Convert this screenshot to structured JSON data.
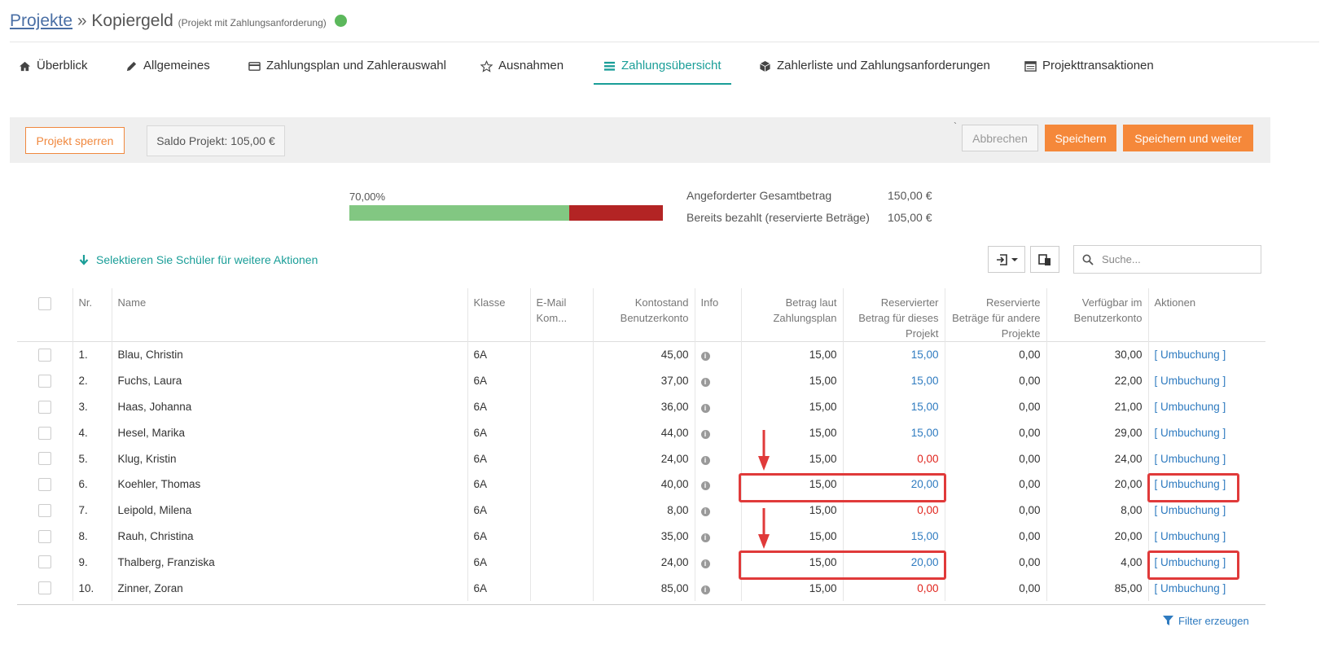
{
  "header": {
    "breadcrumb_link": "Projekte",
    "separator": "»",
    "project_name": "Kopiergeld",
    "subtitle": "(Projekt mit Zahlungsanforderung)",
    "status_color": "#5cb85c"
  },
  "tabs": [
    {
      "label": "Überblick",
      "icon": "home-icon"
    },
    {
      "label": "Allgemeines",
      "icon": "pencil-icon"
    },
    {
      "label": "Zahlungsplan und Zahlerauswahl",
      "icon": "credit-card-icon"
    },
    {
      "label": "Ausnahmen",
      "icon": "star-icon"
    },
    {
      "label": "Zahlungsübersicht",
      "icon": "list-icon",
      "active": true
    },
    {
      "label": "Zahlerliste und Zahlungsanforderungen",
      "icon": "cube-icon"
    },
    {
      "label": "Projekttransaktionen",
      "icon": "table-icon"
    }
  ],
  "toolbar": {
    "lock_label": "Projekt sperren",
    "saldo_label": "Saldo Projekt: 105,00 €",
    "tick": "`",
    "cancel_label": "Abbrechen",
    "save_label": "Speichern",
    "save_next_label": "Speichern und weiter"
  },
  "progress": {
    "percent_label": "70,00%",
    "fraction": 0.7,
    "paid_color": "#82c782",
    "remaining_color": "#b32424",
    "requested_label": "Angeforderter Gesamtbetrag",
    "requested_value": "150,00 €",
    "paid_label": "Bereits bezahlt (reservierte Beträge)",
    "paid_value": "105,00 €"
  },
  "select_hint": "Selektieren Sie Schüler für weitere Aktionen",
  "search": {
    "placeholder": "Suche..."
  },
  "table": {
    "headers": {
      "nr": "Nr.",
      "name": "Name",
      "klasse": "Klasse",
      "email": "E-Mail Kom...",
      "konto": "Kontostand Benutzerkonto",
      "info": "Info",
      "betrag": "Betrag laut Zahlungsplan",
      "reserviert": "Reservierter Betrag für dieses Projekt",
      "andere": "Reservierte Beträge für andere Projekte",
      "verfuegbar": "Verfügbar im Benutzerkonto",
      "aktionen": "Aktionen"
    },
    "rows": [
      {
        "nr": "1.",
        "name": "Blau, Christin",
        "klasse": "6A",
        "konto": "45,00",
        "betrag": "15,00",
        "reserviert": "15,00",
        "andere": "0,00",
        "verfuegbar": "30,00",
        "action": "[ Umbuchung ]",
        "status": "ok"
      },
      {
        "nr": "2.",
        "name": "Fuchs, Laura",
        "klasse": "6A",
        "konto": "37,00",
        "betrag": "15,00",
        "reserviert": "15,00",
        "andere": "0,00",
        "verfuegbar": "22,00",
        "action": "[ Umbuchung ]",
        "status": "ok"
      },
      {
        "nr": "3.",
        "name": "Haas, Johanna",
        "klasse": "6A",
        "konto": "36,00",
        "betrag": "15,00",
        "reserviert": "15,00",
        "andere": "0,00",
        "verfuegbar": "21,00",
        "action": "[ Umbuchung ]",
        "status": "ok"
      },
      {
        "nr": "4.",
        "name": "Hesel, Marika",
        "klasse": "6A",
        "konto": "44,00",
        "betrag": "15,00",
        "reserviert": "15,00",
        "andere": "0,00",
        "verfuegbar": "29,00",
        "action": "[ Umbuchung ]",
        "status": "ok"
      },
      {
        "nr": "5.",
        "name": "Klug, Kristin",
        "klasse": "6A",
        "konto": "24,00",
        "betrag": "15,00",
        "reserviert": "0,00",
        "andere": "0,00",
        "verfuegbar": "24,00",
        "action": "[ Umbuchung ]",
        "status": "missing"
      },
      {
        "nr": "6.",
        "name": "Koehler, Thomas",
        "klasse": "6A",
        "konto": "40,00",
        "betrag": "15,00",
        "reserviert": "20,00",
        "andere": "0,00",
        "verfuegbar": "20,00",
        "action": "[ Umbuchung ]",
        "status": "ok"
      },
      {
        "nr": "7.",
        "name": "Leipold, Milena",
        "klasse": "6A",
        "konto": "8,00",
        "betrag": "15,00",
        "reserviert": "0,00",
        "andere": "0,00",
        "verfuegbar": "8,00",
        "action": "[ Umbuchung ]",
        "status": "missing"
      },
      {
        "nr": "8.",
        "name": "Rauh, Christina",
        "klasse": "6A",
        "konto": "35,00",
        "betrag": "15,00",
        "reserviert": "15,00",
        "andere": "0,00",
        "verfuegbar": "20,00",
        "action": "[ Umbuchung ]",
        "status": "ok"
      },
      {
        "nr": "9.",
        "name": "Thalberg, Franziska",
        "klasse": "6A",
        "konto": "24,00",
        "betrag": "15,00",
        "reserviert": "20,00",
        "andere": "0,00",
        "verfuegbar": "4,00",
        "action": "[ Umbuchung ]",
        "status": "ok"
      },
      {
        "nr": "10.",
        "name": "Zinner, Zoran",
        "klasse": "6A",
        "konto": "85,00",
        "betrag": "15,00",
        "reserviert": "0,00",
        "andere": "0,00",
        "verfuegbar": "85,00",
        "action": "[ Umbuchung ]",
        "status": "missing"
      }
    ]
  },
  "filter_label": "Filter erzeugen",
  "colors": {
    "accent": "#1a9e98",
    "orange": "#f5883a",
    "link_blue": "#2f7bc0",
    "error_red": "#e0241d",
    "annotation_red": "#e03a3a"
  }
}
